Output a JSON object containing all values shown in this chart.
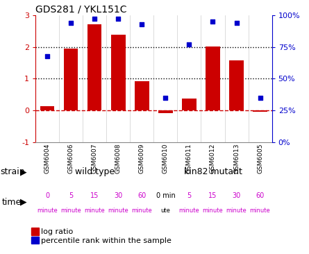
{
  "title": "GDS281 / YKL151C",
  "samples": [
    "GSM6004",
    "GSM6006",
    "GSM6007",
    "GSM6008",
    "GSM6009",
    "GSM6010",
    "GSM6011",
    "GSM6012",
    "GSM6013",
    "GSM6005"
  ],
  "log_ratio": [
    0.13,
    1.95,
    2.72,
    2.38,
    0.93,
    -0.08,
    0.38,
    2.02,
    1.58,
    -0.04
  ],
  "percentile": [
    68,
    94,
    97,
    97,
    93,
    35,
    77,
    95,
    94,
    35
  ],
  "bar_color": "#cc0000",
  "dot_color": "#0000cc",
  "ylim_left": [
    -1,
    3
  ],
  "ylim_right": [
    0,
    100
  ],
  "yticks_left": [
    -1,
    0,
    1,
    2,
    3
  ],
  "yticks_right": [
    0,
    25,
    50,
    75,
    100
  ],
  "yticklabels_right": [
    "0%",
    "25%",
    "50%",
    "75%",
    "100%"
  ],
  "strain_labels": [
    "wild type",
    "kin82 mutant"
  ],
  "strain_colors": [
    "#aaffaa",
    "#44dd44"
  ],
  "time_labels": [
    [
      "0",
      "minute"
    ],
    [
      "5",
      "minute"
    ],
    [
      "15",
      "minute"
    ],
    [
      "30",
      "minute"
    ],
    [
      "60",
      "minute"
    ],
    [
      "0 min",
      "ute"
    ],
    [
      "5",
      "minute"
    ],
    [
      "15",
      "minute"
    ],
    [
      "30",
      "minute"
    ],
    [
      "60",
      "minute"
    ]
  ],
  "time_colors": [
    "#ee82ee",
    "#ee82ee",
    "#ee82ee",
    "#ee82ee",
    "#ee82ee",
    "#ffffff",
    "#ee82ee",
    "#ee82ee",
    "#ee82ee",
    "#ee82ee"
  ],
  "time_text_colors": [
    "#cc00cc",
    "#cc00cc",
    "#cc00cc",
    "#cc00cc",
    "#cc00cc",
    "#000000",
    "#cc00cc",
    "#cc00cc",
    "#cc00cc",
    "#cc00cc"
  ],
  "legend_labels": [
    "log ratio",
    "percentile rank within the sample"
  ],
  "legend_colors": [
    "#cc0000",
    "#0000cc"
  ],
  "bg_color": "#ffffff"
}
